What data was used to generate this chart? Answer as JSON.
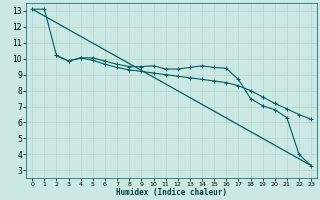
{
  "xlabel": "Humidex (Indice chaleur)",
  "background_color": "#cce8e4",
  "grid_color": "#b8d8d4",
  "line_color": "#006060",
  "xlim": [
    -0.5,
    23.5
  ],
  "ylim": [
    2.5,
    13.5
  ],
  "xticks": [
    0,
    1,
    2,
    3,
    4,
    5,
    6,
    7,
    8,
    9,
    10,
    11,
    12,
    13,
    14,
    15,
    16,
    17,
    18,
    19,
    20,
    21,
    22,
    23
  ],
  "yticks": [
    3,
    4,
    5,
    6,
    7,
    8,
    9,
    10,
    11,
    12,
    13
  ],
  "line1_x": [
    0,
    1,
    2,
    3,
    4,
    5,
    6,
    7,
    8,
    9,
    10,
    11,
    12,
    13,
    14,
    15,
    16,
    17,
    18,
    19,
    20,
    21,
    22,
    23
  ],
  "line1_y": [
    13.1,
    13.1,
    10.2,
    9.85,
    10.05,
    10.05,
    9.85,
    9.65,
    9.5,
    9.5,
    9.55,
    9.35,
    9.35,
    9.45,
    9.55,
    9.45,
    9.4,
    8.7,
    7.5,
    7.05,
    6.8,
    6.3,
    4.0,
    3.3
  ],
  "line2_x": [
    2,
    3,
    4,
    5,
    6,
    7,
    8,
    9,
    10,
    11,
    12,
    13,
    14,
    15,
    16,
    17,
    18,
    19,
    20,
    21,
    22,
    23
  ],
  "line2_y": [
    10.2,
    9.85,
    10.05,
    9.9,
    9.65,
    9.45,
    9.3,
    9.2,
    9.1,
    9.0,
    8.9,
    8.8,
    8.7,
    8.6,
    8.5,
    8.3,
    8.0,
    7.6,
    7.2,
    6.85,
    6.5,
    6.2
  ],
  "line3_x": [
    0,
    23
  ],
  "line3_y": [
    13.1,
    3.3
  ]
}
